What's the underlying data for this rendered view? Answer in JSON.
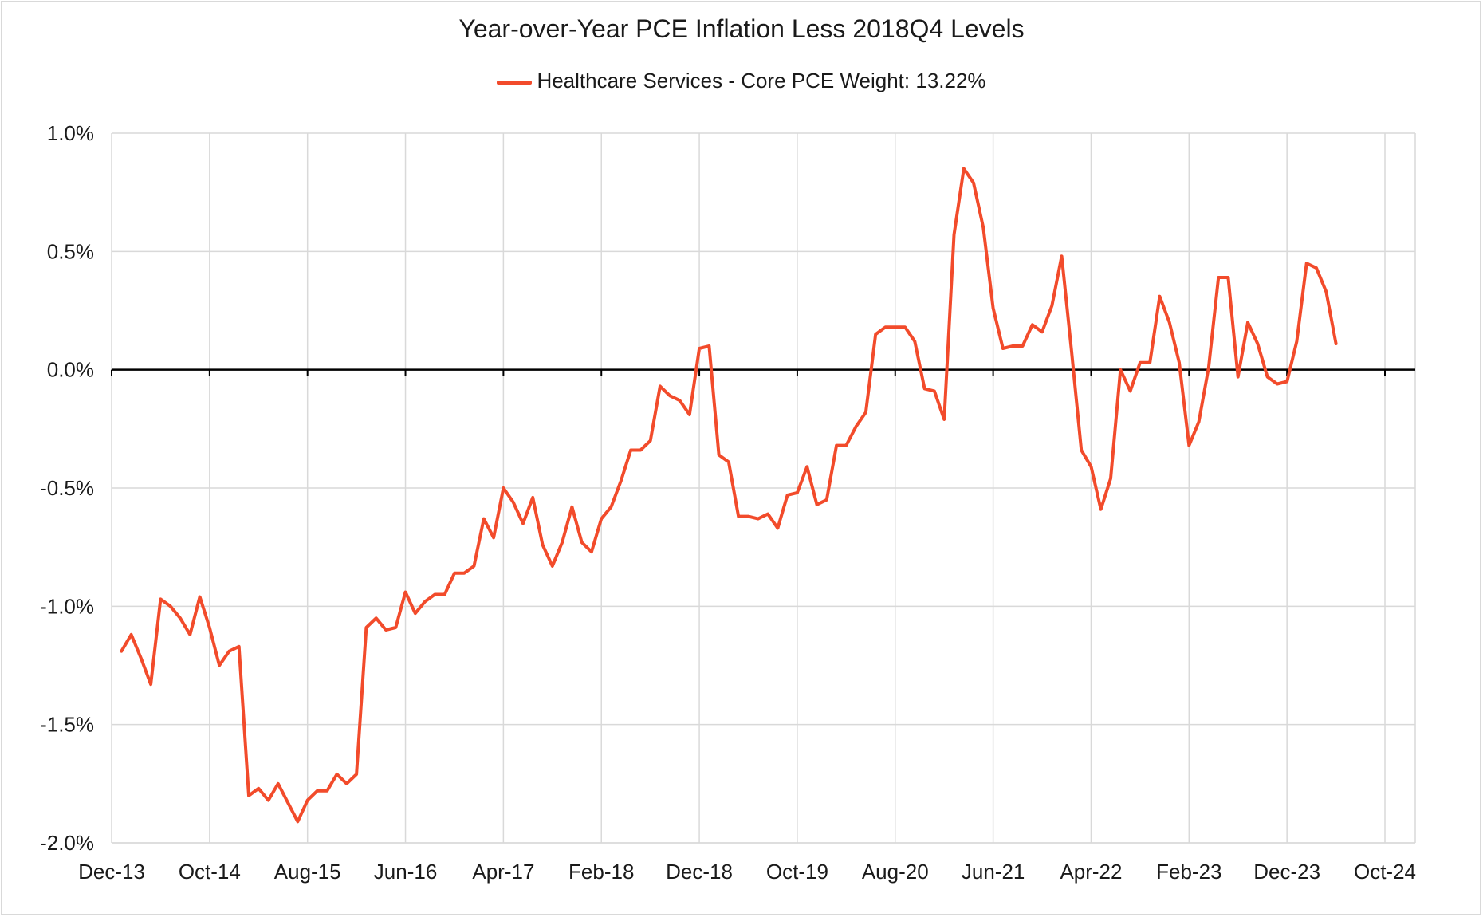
{
  "chart_data": {
    "type": "line",
    "title": "Year-over-Year PCE Inflation Less 2018Q4 Levels",
    "xlabel": "",
    "ylabel": "",
    "legend_position": "top-center",
    "grid": true,
    "ylim": [
      -2.0,
      1.0
    ],
    "y_ticks": [
      "1.0%",
      "0.5%",
      "0.0%",
      "-0.5%",
      "-1.0%",
      "-1.5%",
      "-2.0%"
    ],
    "x_ticks": [
      "Dec-13",
      "Oct-14",
      "Aug-15",
      "Jun-16",
      "Apr-17",
      "Feb-18",
      "Dec-18",
      "Oct-19",
      "Aug-20",
      "Jun-21",
      "Apr-22",
      "Feb-23",
      "Dec-23",
      "Oct-24"
    ],
    "x_start": "2013-12",
    "series": [
      {
        "name": "Healthcare Services - Core PCE Weight: 13.22%",
        "color": "#f24b2b",
        "x": [
          "2014-01",
          "2014-02",
          "2014-03",
          "2014-04",
          "2014-05",
          "2014-06",
          "2014-07",
          "2014-08",
          "2014-09",
          "2014-10",
          "2014-11",
          "2014-12",
          "2015-01",
          "2015-02",
          "2015-03",
          "2015-04",
          "2015-05",
          "2015-06",
          "2015-07",
          "2015-08",
          "2015-09",
          "2015-10",
          "2015-11",
          "2015-12",
          "2016-01",
          "2016-02",
          "2016-03",
          "2016-04",
          "2016-05",
          "2016-06",
          "2016-07",
          "2016-08",
          "2016-09",
          "2016-10",
          "2016-11",
          "2016-12",
          "2017-01",
          "2017-02",
          "2017-03",
          "2017-04",
          "2017-05",
          "2017-06",
          "2017-07",
          "2017-08",
          "2017-09",
          "2017-10",
          "2017-11",
          "2017-12",
          "2018-01",
          "2018-02",
          "2018-03",
          "2018-04",
          "2018-05",
          "2018-06",
          "2018-07",
          "2018-08",
          "2018-09",
          "2018-10",
          "2018-11",
          "2018-12",
          "2019-01",
          "2019-02",
          "2019-03",
          "2019-04",
          "2019-05",
          "2019-06",
          "2019-07",
          "2019-08",
          "2019-09",
          "2019-10",
          "2019-11",
          "2019-12",
          "2020-01",
          "2020-02",
          "2020-03",
          "2020-04",
          "2020-05",
          "2020-06",
          "2020-07",
          "2020-08",
          "2020-09",
          "2020-10",
          "2020-11",
          "2020-12",
          "2021-01",
          "2021-02",
          "2021-03",
          "2021-04",
          "2021-05",
          "2021-06",
          "2021-07",
          "2021-08",
          "2021-09",
          "2021-10",
          "2021-11",
          "2021-12",
          "2022-01",
          "2022-02",
          "2022-03",
          "2022-04",
          "2022-05",
          "2022-06",
          "2022-07",
          "2022-08",
          "2022-09",
          "2022-10",
          "2022-11",
          "2022-12",
          "2023-01",
          "2023-02",
          "2023-03",
          "2023-04",
          "2023-05",
          "2023-06",
          "2023-07",
          "2023-08",
          "2023-09",
          "2023-10",
          "2023-11",
          "2023-12",
          "2024-01",
          "2024-02",
          "2024-03",
          "2024-04",
          "2024-05"
        ],
        "values": [
          -1.19,
          -1.12,
          -1.22,
          -1.33,
          -0.97,
          -1.0,
          -1.05,
          -1.12,
          -0.96,
          -1.09,
          -1.25,
          -1.19,
          -1.17,
          -1.8,
          -1.77,
          -1.82,
          -1.75,
          -1.83,
          -1.91,
          -1.82,
          -1.78,
          -1.78,
          -1.71,
          -1.75,
          -1.71,
          -1.09,
          -1.05,
          -1.1,
          -1.09,
          -0.94,
          -1.03,
          -0.98,
          -0.95,
          -0.95,
          -0.86,
          -0.86,
          -0.83,
          -0.63,
          -0.71,
          -0.5,
          -0.56,
          -0.65,
          -0.54,
          -0.74,
          -0.83,
          -0.73,
          -0.58,
          -0.73,
          -0.77,
          -0.63,
          -0.58,
          -0.47,
          -0.34,
          -0.34,
          -0.3,
          -0.07,
          -0.11,
          -0.13,
          -0.19,
          0.09,
          0.1,
          -0.36,
          -0.39,
          -0.62,
          -0.62,
          -0.63,
          -0.61,
          -0.67,
          -0.53,
          -0.52,
          -0.41,
          -0.57,
          -0.55,
          -0.32,
          -0.32,
          -0.24,
          -0.18,
          0.15,
          0.18,
          0.18,
          0.18,
          0.12,
          -0.08,
          -0.09,
          -0.21,
          0.57,
          0.85,
          0.79,
          0.6,
          0.26,
          0.09,
          0.1,
          0.1,
          0.19,
          0.16,
          0.27,
          0.48,
          0.08,
          -0.34,
          -0.41,
          -0.59,
          -0.46,
          0.0,
          -0.09,
          0.03,
          0.03,
          0.31,
          0.2,
          0.03,
          -0.32,
          -0.22,
          0.01,
          0.39,
          0.39,
          -0.03,
          0.2,
          0.11,
          -0.03,
          -0.06,
          -0.05,
          0.12,
          0.45,
          0.43,
          0.33,
          0.11
        ]
      }
    ]
  }
}
